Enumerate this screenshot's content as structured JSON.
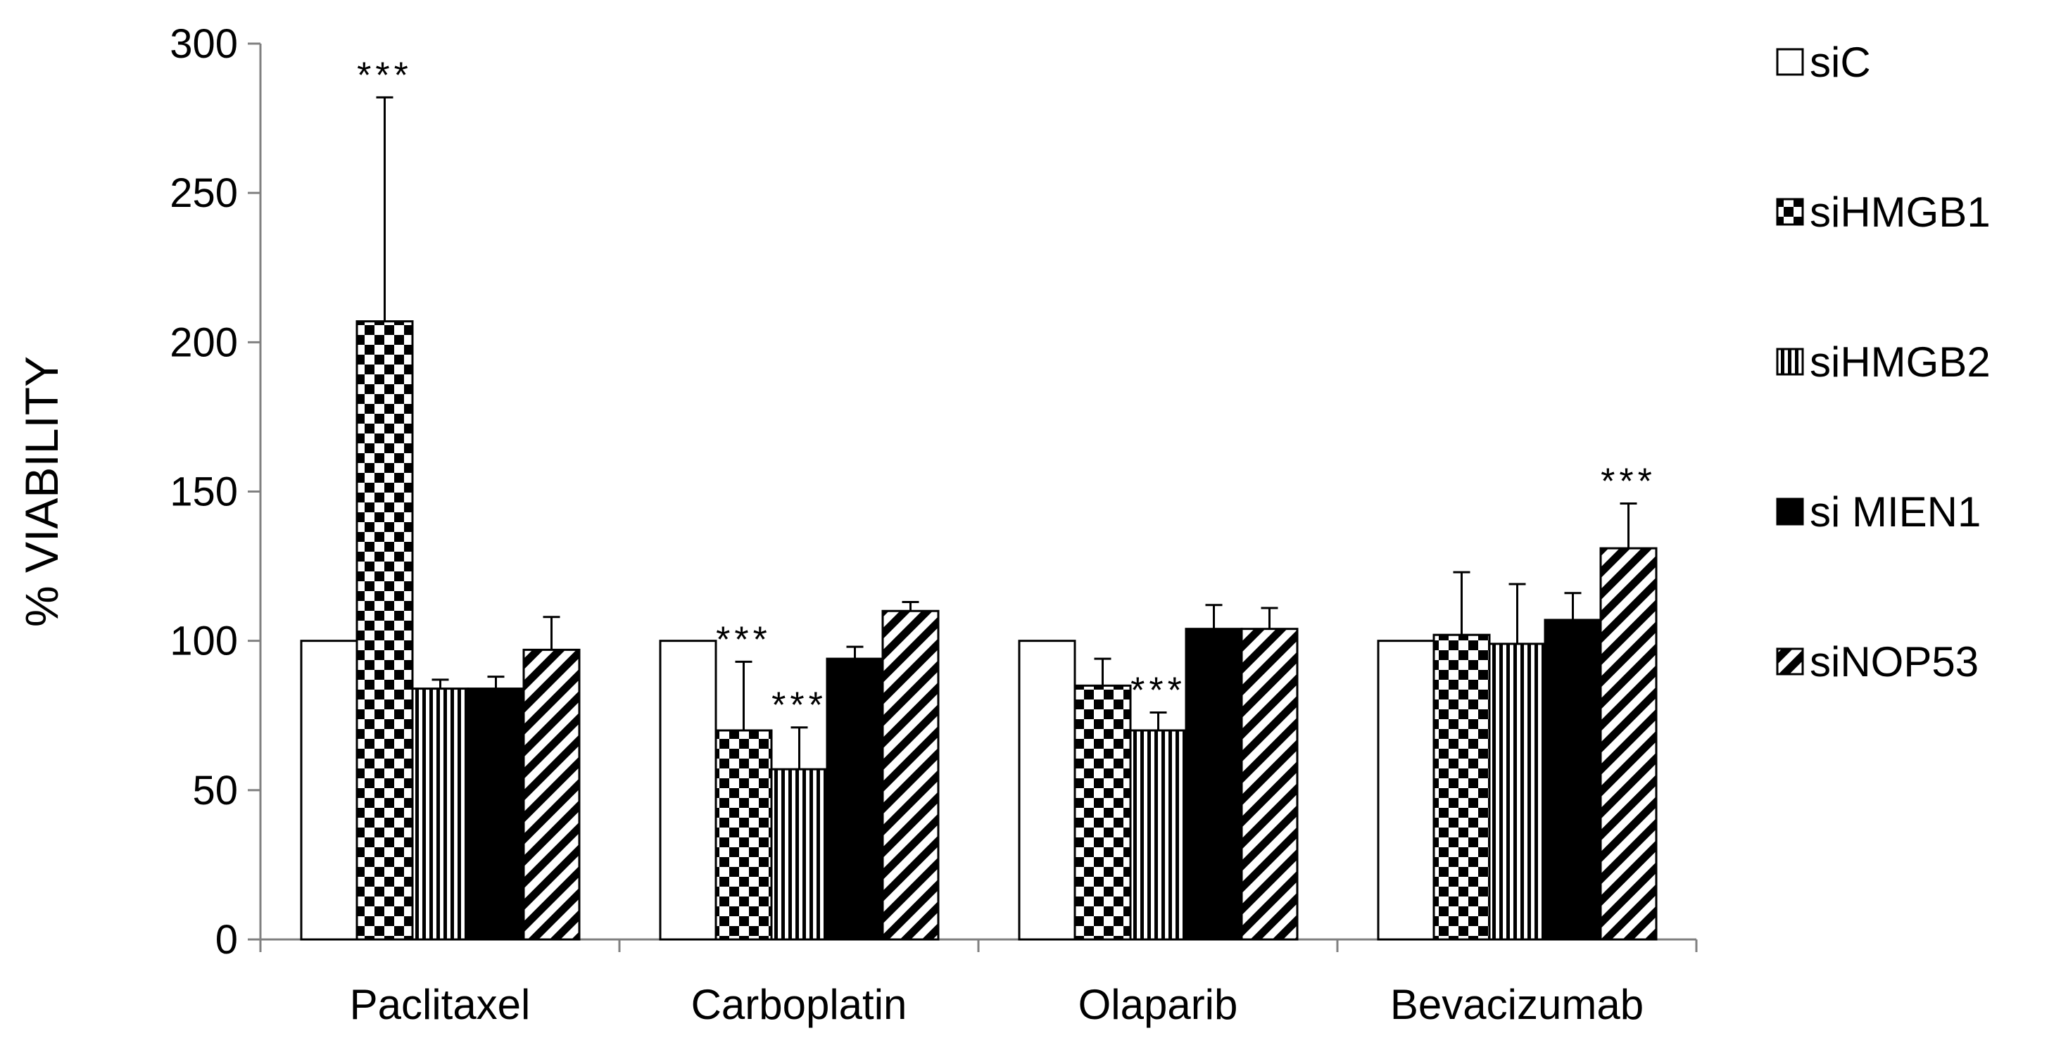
{
  "colors": {
    "background": "#ffffff",
    "ink": "#000000"
  },
  "chart_data": {
    "type": "bar",
    "title": "",
    "xlabel": "",
    "ylabel": "% VIABILITY",
    "ylim": [
      0,
      300
    ],
    "yticks": [
      0,
      50,
      100,
      150,
      200,
      250,
      300
    ],
    "grid": false,
    "legend_position": "right",
    "categories": [
      "Paclitaxel",
      "Carboplatin",
      "Olaparib",
      "Bevacizumab"
    ],
    "series": [
      {
        "name": "siC",
        "pattern": "white",
        "values": [
          100,
          100,
          100,
          100
        ],
        "errors": [
          0,
          0,
          0,
          0
        ]
      },
      {
        "name": "siHMGB1",
        "pattern": "checker",
        "values": [
          207,
          70,
          85,
          102
        ],
        "errors": [
          75,
          23,
          9,
          21
        ]
      },
      {
        "name": "siHMGB2",
        "pattern": "vertical",
        "values": [
          84,
          57,
          70,
          99
        ],
        "errors": [
          3,
          14,
          6,
          20
        ]
      },
      {
        "name": "si MIEN1",
        "pattern": "solid",
        "values": [
          84,
          94,
          104,
          107
        ],
        "errors": [
          4,
          4,
          8,
          9
        ]
      },
      {
        "name": "siNOP53",
        "pattern": "diagonal",
        "values": [
          97,
          110,
          104,
          131
        ],
        "errors": [
          11,
          3,
          7,
          15
        ]
      }
    ],
    "significance": [
      {
        "category": 0,
        "series": 1,
        "label": "***"
      },
      {
        "category": 1,
        "series": 1,
        "label": "***"
      },
      {
        "category": 1,
        "series": 2,
        "label": "***"
      },
      {
        "category": 2,
        "series": 2,
        "label": "***"
      },
      {
        "category": 3,
        "series": 4,
        "label": "***"
      }
    ]
  }
}
